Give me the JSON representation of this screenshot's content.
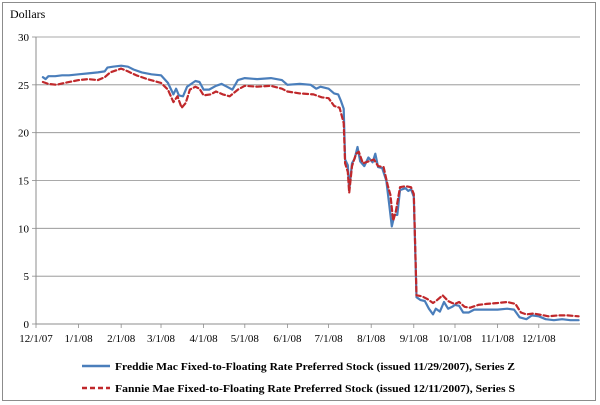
{
  "chart_data": {
    "type": "line",
    "title": "",
    "xlabel": "",
    "ylabel": "Dollars",
    "ylim": [
      0,
      30
    ],
    "yticks": [
      0,
      5,
      10,
      15,
      20,
      25,
      30
    ],
    "xlim": [
      "2007-12-01",
      "2008-12-31"
    ],
    "xtick_labels": [
      "12/1/07",
      "1/1/08",
      "2/1/08",
      "3/1/08",
      "4/1/08",
      "5/1/08",
      "6/1/08",
      "7/1/08",
      "8/1/08",
      "9/1/08",
      "10/1/08",
      "11/1/08",
      "12/1/08"
    ],
    "xtick_dates": [
      "2007-12-01",
      "2008-01-01",
      "2008-02-01",
      "2008-03-01",
      "2008-04-01",
      "2008-05-01",
      "2008-06-01",
      "2008-07-01",
      "2008-08-01",
      "2008-09-01",
      "2008-10-01",
      "2008-11-01",
      "2008-12-01"
    ],
    "grid": "horizontal",
    "legend_position": "bottom",
    "series": [
      {
        "name": "Freddie Mac Fixed-to-Floating Rate Preferred Stock (issued 11/29/2007), Series Z",
        "color": "#4a7ebb",
        "style": "solid",
        "points": [
          [
            "2007-12-06",
            25.8
          ],
          [
            "2007-12-08",
            25.6
          ],
          [
            "2007-12-10",
            25.9
          ],
          [
            "2007-12-15",
            25.9
          ],
          [
            "2007-12-20",
            26.0
          ],
          [
            "2007-12-25",
            26.0
          ],
          [
            "2008-01-01",
            26.1
          ],
          [
            "2008-01-08",
            26.2
          ],
          [
            "2008-01-15",
            26.3
          ],
          [
            "2008-01-20",
            26.4
          ],
          [
            "2008-01-22",
            26.8
          ],
          [
            "2008-01-26",
            26.9
          ],
          [
            "2008-02-01",
            27.0
          ],
          [
            "2008-02-06",
            26.9
          ],
          [
            "2008-02-10",
            26.6
          ],
          [
            "2008-02-16",
            26.3
          ],
          [
            "2008-02-23",
            26.1
          ],
          [
            "2008-03-01",
            26.0
          ],
          [
            "2008-03-06",
            25.2
          ],
          [
            "2008-03-10",
            24.0
          ],
          [
            "2008-03-12",
            24.6
          ],
          [
            "2008-03-14",
            23.9
          ],
          [
            "2008-03-17",
            23.8
          ],
          [
            "2008-03-20",
            24.8
          ],
          [
            "2008-03-23",
            25.1
          ],
          [
            "2008-03-26",
            25.4
          ],
          [
            "2008-03-29",
            25.3
          ],
          [
            "2008-04-01",
            24.5
          ],
          [
            "2008-04-05",
            24.5
          ],
          [
            "2008-04-10",
            24.9
          ],
          [
            "2008-04-14",
            25.1
          ],
          [
            "2008-04-18",
            24.8
          ],
          [
            "2008-04-22",
            24.5
          ],
          [
            "2008-04-26",
            25.5
          ],
          [
            "2008-05-01",
            25.7
          ],
          [
            "2008-05-10",
            25.6
          ],
          [
            "2008-05-20",
            25.7
          ],
          [
            "2008-05-28",
            25.5
          ],
          [
            "2008-06-01",
            25.0
          ],
          [
            "2008-06-10",
            25.1
          ],
          [
            "2008-06-18",
            25.0
          ],
          [
            "2008-06-22",
            24.6
          ],
          [
            "2008-06-25",
            24.8
          ],
          [
            "2008-07-01",
            24.6
          ],
          [
            "2008-07-05",
            24.1
          ],
          [
            "2008-07-08",
            24.0
          ],
          [
            "2008-07-10",
            23.3
          ],
          [
            "2008-07-12",
            22.5
          ],
          [
            "2008-07-13",
            17.2
          ],
          [
            "2008-07-15",
            16.6
          ],
          [
            "2008-07-16",
            14.0
          ],
          [
            "2008-07-18",
            16.8
          ],
          [
            "2008-07-20",
            17.3
          ],
          [
            "2008-07-22",
            18.5
          ],
          [
            "2008-07-24",
            17.0
          ],
          [
            "2008-07-27",
            16.5
          ],
          [
            "2008-07-30",
            17.4
          ],
          [
            "2008-08-02",
            16.9
          ],
          [
            "2008-08-04",
            17.8
          ],
          [
            "2008-08-06",
            16.4
          ],
          [
            "2008-08-09",
            16.3
          ],
          [
            "2008-08-12",
            15.0
          ],
          [
            "2008-08-14",
            12.6
          ],
          [
            "2008-08-16",
            10.2
          ],
          [
            "2008-08-18",
            11.4
          ],
          [
            "2008-08-20",
            11.4
          ],
          [
            "2008-08-22",
            14.0
          ],
          [
            "2008-08-26",
            14.2
          ],
          [
            "2008-08-28",
            13.9
          ],
          [
            "2008-08-30",
            14.1
          ],
          [
            "2008-09-01",
            13.3
          ],
          [
            "2008-09-03",
            2.8
          ],
          [
            "2008-09-06",
            2.5
          ],
          [
            "2008-09-09",
            2.4
          ],
          [
            "2008-09-12",
            1.6
          ],
          [
            "2008-09-15",
            1.0
          ],
          [
            "2008-09-17",
            1.6
          ],
          [
            "2008-09-20",
            1.3
          ],
          [
            "2008-09-23",
            2.3
          ],
          [
            "2008-09-26",
            1.6
          ],
          [
            "2008-09-29",
            1.8
          ],
          [
            "2008-10-01",
            2.0
          ],
          [
            "2008-10-04",
            1.9
          ],
          [
            "2008-10-07",
            1.2
          ],
          [
            "2008-10-11",
            1.2
          ],
          [
            "2008-10-15",
            1.5
          ],
          [
            "2008-10-20",
            1.5
          ],
          [
            "2008-10-25",
            1.5
          ],
          [
            "2008-11-01",
            1.5
          ],
          [
            "2008-11-08",
            1.6
          ],
          [
            "2008-11-13",
            1.5
          ],
          [
            "2008-11-17",
            0.7
          ],
          [
            "2008-11-22",
            0.5
          ],
          [
            "2008-11-26",
            0.9
          ],
          [
            "2008-12-01",
            0.8
          ],
          [
            "2008-12-06",
            0.5
          ],
          [
            "2008-12-12",
            0.4
          ],
          [
            "2008-12-18",
            0.5
          ],
          [
            "2008-12-24",
            0.4
          ],
          [
            "2008-12-30",
            0.4
          ]
        ]
      },
      {
        "name": "Fannie Mae Fixed-to-Floating Rate Preferred Stock (issued 12/11/2007), Series S",
        "color": "#c0282b",
        "style": "dashed",
        "points": [
          [
            "2007-12-06",
            25.3
          ],
          [
            "2007-12-10",
            25.1
          ],
          [
            "2007-12-16",
            25.0
          ],
          [
            "2007-12-22",
            25.2
          ],
          [
            "2008-01-01",
            25.5
          ],
          [
            "2008-01-08",
            25.6
          ],
          [
            "2008-01-15",
            25.5
          ],
          [
            "2008-01-20",
            25.8
          ],
          [
            "2008-01-24",
            26.3
          ],
          [
            "2008-02-01",
            26.7
          ],
          [
            "2008-02-06",
            26.4
          ],
          [
            "2008-02-12",
            26.0
          ],
          [
            "2008-02-20",
            25.6
          ],
          [
            "2008-03-01",
            25.2
          ],
          [
            "2008-03-06",
            24.5
          ],
          [
            "2008-03-10",
            23.2
          ],
          [
            "2008-03-13",
            23.8
          ],
          [
            "2008-03-16",
            22.6
          ],
          [
            "2008-03-19",
            23.1
          ],
          [
            "2008-03-22",
            24.5
          ],
          [
            "2008-03-26",
            24.8
          ],
          [
            "2008-03-29",
            24.6
          ],
          [
            "2008-04-01",
            23.9
          ],
          [
            "2008-04-06",
            24.0
          ],
          [
            "2008-04-10",
            24.3
          ],
          [
            "2008-04-15",
            24.0
          ],
          [
            "2008-04-20",
            23.8
          ],
          [
            "2008-04-26",
            24.5
          ],
          [
            "2008-05-01",
            24.9
          ],
          [
            "2008-05-10",
            24.8
          ],
          [
            "2008-05-20",
            24.9
          ],
          [
            "2008-05-28",
            24.6
          ],
          [
            "2008-06-01",
            24.3
          ],
          [
            "2008-06-10",
            24.1
          ],
          [
            "2008-06-20",
            24.0
          ],
          [
            "2008-06-26",
            23.7
          ],
          [
            "2008-07-01",
            23.6
          ],
          [
            "2008-07-05",
            22.8
          ],
          [
            "2008-07-09",
            22.6
          ],
          [
            "2008-07-12",
            21.0
          ],
          [
            "2008-07-13",
            16.8
          ],
          [
            "2008-07-15",
            15.9
          ],
          [
            "2008-07-16",
            13.7
          ],
          [
            "2008-07-18",
            16.5
          ],
          [
            "2008-07-21",
            17.8
          ],
          [
            "2008-07-23",
            18.0
          ],
          [
            "2008-07-26",
            16.8
          ],
          [
            "2008-07-30",
            17.0
          ],
          [
            "2008-08-03",
            17.2
          ],
          [
            "2008-08-06",
            16.5
          ],
          [
            "2008-08-10",
            16.4
          ],
          [
            "2008-08-13",
            14.5
          ],
          [
            "2008-08-15",
            13.5
          ],
          [
            "2008-08-17",
            10.8
          ],
          [
            "2008-08-19",
            11.8
          ],
          [
            "2008-08-22",
            14.3
          ],
          [
            "2008-08-26",
            14.4
          ],
          [
            "2008-08-30",
            14.3
          ],
          [
            "2008-09-01",
            13.6
          ],
          [
            "2008-09-03",
            3.0
          ],
          [
            "2008-09-07",
            2.9
          ],
          [
            "2008-09-11",
            2.6
          ],
          [
            "2008-09-15",
            2.2
          ],
          [
            "2008-09-18",
            2.5
          ],
          [
            "2008-09-22",
            3.0
          ],
          [
            "2008-09-26",
            2.4
          ],
          [
            "2008-09-29",
            2.2
          ],
          [
            "2008-10-01",
            2.1
          ],
          [
            "2008-10-04",
            2.3
          ],
          [
            "2008-10-08",
            1.8
          ],
          [
            "2008-10-12",
            1.7
          ],
          [
            "2008-10-18",
            2.0
          ],
          [
            "2008-10-24",
            2.1
          ],
          [
            "2008-11-01",
            2.2
          ],
          [
            "2008-11-08",
            2.3
          ],
          [
            "2008-11-14",
            2.1
          ],
          [
            "2008-11-18",
            1.2
          ],
          [
            "2008-11-22",
            1.0
          ],
          [
            "2008-11-27",
            1.1
          ],
          [
            "2008-12-01",
            1.0
          ],
          [
            "2008-12-08",
            0.8
          ],
          [
            "2008-12-15",
            0.9
          ],
          [
            "2008-12-22",
            0.9
          ],
          [
            "2008-12-30",
            0.8
          ]
        ]
      }
    ]
  }
}
